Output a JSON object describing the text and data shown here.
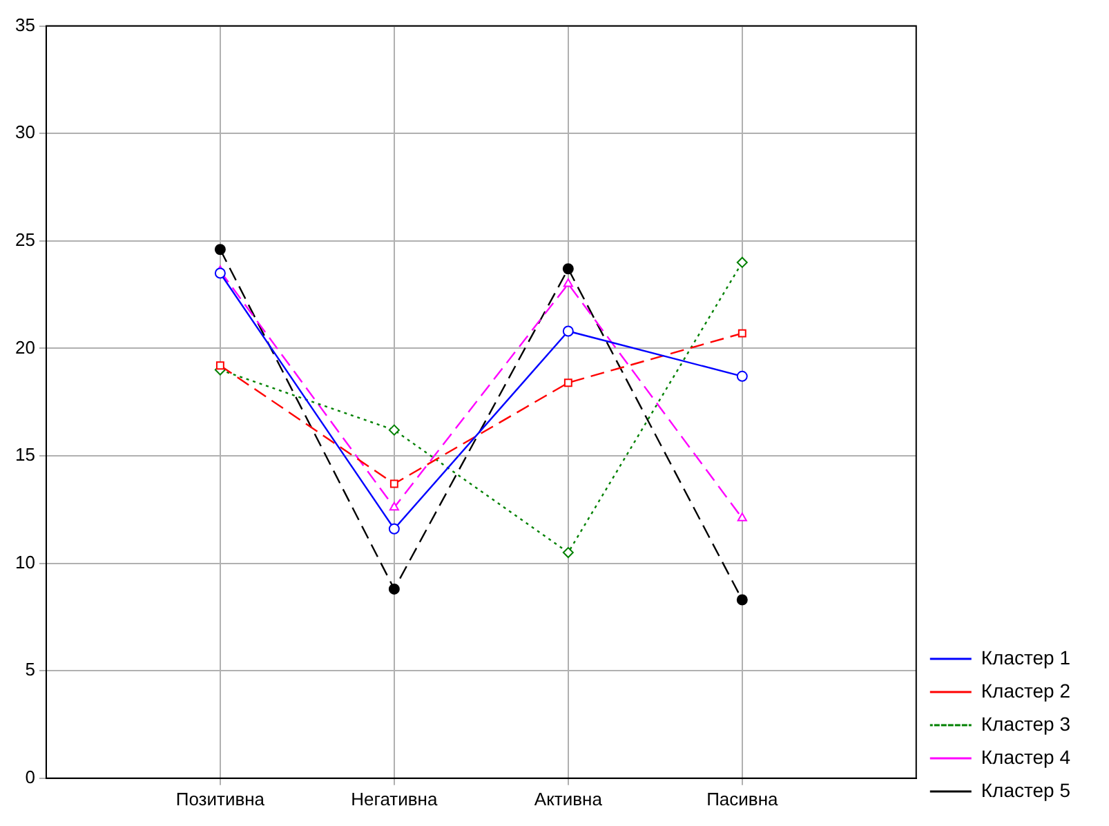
{
  "chart_data": {
    "type": "line",
    "categories": [
      "Позитивна",
      "Негативна",
      "Активна",
      "Пасивна"
    ],
    "series": [
      {
        "name": "Кластер 1",
        "color": "#0000ff",
        "values": [
          23.5,
          11.6,
          20.8,
          18.7
        ],
        "marker": "circle",
        "line_style": "solid"
      },
      {
        "name": "Кластер 2",
        "color": "#ff0000",
        "values": [
          19.2,
          13.7,
          18.4,
          20.7
        ],
        "marker": "square",
        "line_style": "dashed"
      },
      {
        "name": "Кластер 3",
        "color": "#008000",
        "values": [
          19.0,
          16.2,
          10.5,
          24.0
        ],
        "marker": "diamond",
        "line_style": "dotted"
      },
      {
        "name": "Кластер 4",
        "color": "#ff00ff",
        "values": [
          23.6,
          12.6,
          23.0,
          12.1
        ],
        "marker": "triangle",
        "line_style": "dashed"
      },
      {
        "name": "Кластер 5",
        "color": "#000000",
        "values": [
          24.6,
          8.8,
          23.7,
          8.3
        ],
        "marker": "circle",
        "line_style": "dashed"
      }
    ],
    "ylim": [
      0,
      35
    ],
    "yticks": [
      0,
      5,
      10,
      15,
      20,
      25,
      30,
      35
    ],
    "grid": true,
    "legend": "bottom right"
  }
}
